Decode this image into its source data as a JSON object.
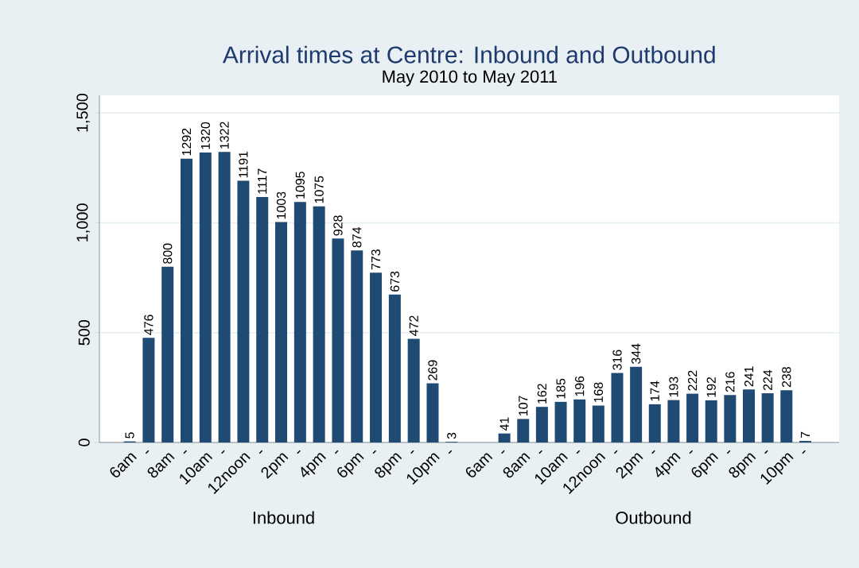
{
  "chart_data": [
    {
      "type": "bar",
      "title": "Arrival times at Centre: Inbound and Outbound",
      "subtitle": "May 2010 to May 2011",
      "xlabel": "Inbound",
      "categories": [
        "6am",
        "-",
        "8am",
        "-",
        "10am",
        "-",
        "12noon",
        "-",
        "2pm",
        "-",
        "4pm",
        "-",
        "6pm",
        "-",
        "8pm",
        "-",
        "10pm",
        "-"
      ],
      "values": [
        5,
        476,
        800,
        1292,
        1320,
        1322,
        1191,
        1117,
        1003,
        1095,
        1075,
        928,
        874,
        773,
        673,
        472,
        269,
        3
      ],
      "color": "#1f4a73",
      "ylim": [
        0,
        1580
      ],
      "yticks": [
        {
          "value": 0,
          "label": "0"
        },
        {
          "value": 500,
          "label": "500"
        },
        {
          "value": 1000,
          "label": "1,000"
        },
        {
          "value": 1500,
          "label": "1,500"
        }
      ],
      "grid": "y",
      "data_labels": true
    },
    {
      "type": "bar",
      "xlabel": "Outbound",
      "categories": [
        "6am",
        "-",
        "8am",
        "-",
        "10am",
        "-",
        "12noon",
        "-",
        "2pm",
        "-",
        "4pm",
        "-",
        "6pm",
        "-",
        "8pm",
        "-",
        "10pm",
        "-"
      ],
      "values": [
        null,
        41,
        107,
        162,
        185,
        196,
        168,
        316,
        344,
        174,
        193,
        222,
        192,
        216,
        241,
        224,
        238,
        7
      ],
      "color": "#1f4a73",
      "ylim": [
        0,
        1580
      ],
      "yticks": [
        {
          "value": 0,
          "label": null
        },
        {
          "value": 500,
          "label": null
        },
        {
          "value": 1000,
          "label": null
        },
        {
          "value": 1500,
          "label": null
        }
      ],
      "grid": "y",
      "tick_labels": "x",
      "data_labels": true
    }
  ]
}
